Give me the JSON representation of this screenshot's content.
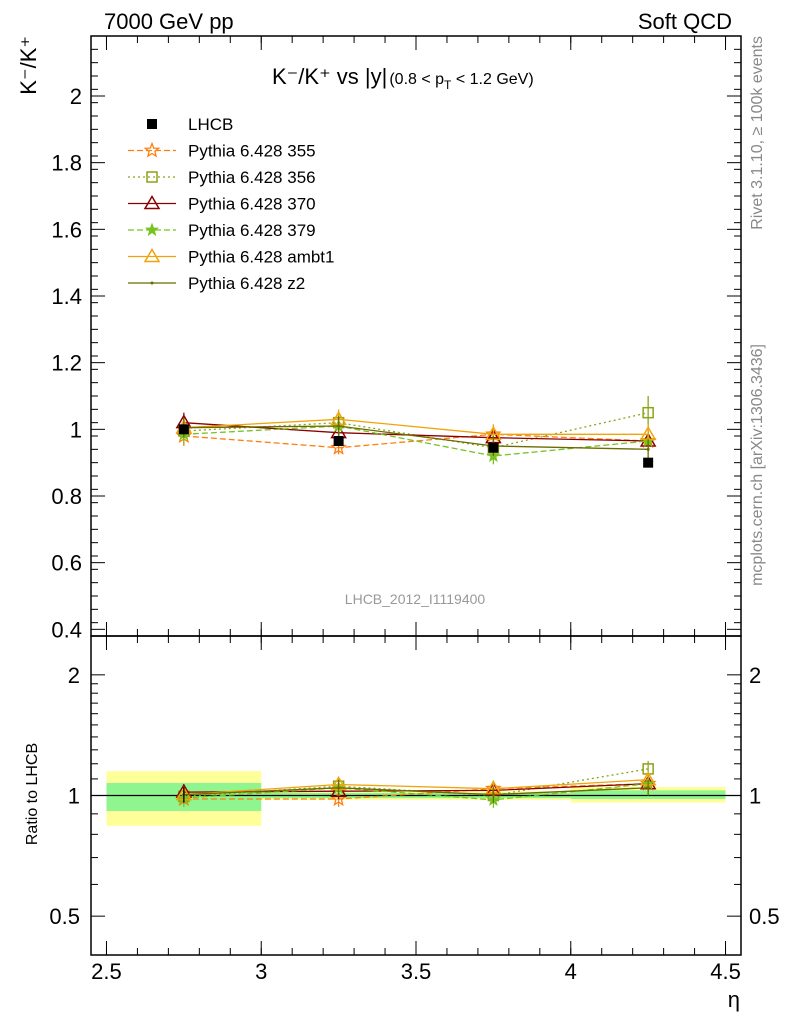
{
  "header": {
    "left": "7000 GeV pp",
    "right": "Soft QCD"
  },
  "side_labels": {
    "top": "Rivet 3.1.10, ≥ 100k events",
    "bottom": "mcplots.cern.ch [arXiv:1306.3436]"
  },
  "colors": {
    "LHCB": "#000000",
    "p355": "#ff7f0e",
    "p356": "#8aa418",
    "p370": "#8b0000",
    "p379": "#77c322",
    "pambt1": "#f0a30a",
    "pz2": "#6b6b00",
    "band_green": "#8ff58f",
    "band_yellow": "#ffff99"
  },
  "chart_data": [
    {
      "type": "scatter",
      "panel": "main",
      "title_main": "K⁻/K⁺ vs |y|",
      "title_sub": "(0.8 < p",
      "title_sub_index": "T",
      "title_sub_end": " < 1.2 GeV)",
      "ylabel": "K⁻/K⁺",
      "ylim": [
        0.38,
        2.18
      ],
      "yticks": [
        "0.4",
        "0.6",
        "0.8",
        "1",
        "1.2",
        "1.4",
        "1.6",
        "1.8",
        "2"
      ],
      "xlim": [
        2.45,
        4.55
      ],
      "watermark": "LHCB_2012_I1119400",
      "legend_position": "top-left",
      "x": [
        2.75,
        3.25,
        3.75,
        4.25
      ],
      "series": [
        {
          "name": "LHCB",
          "key": "LHCB",
          "marker": "square-filled",
          "dash": "none",
          "values": [
            1.0,
            0.965,
            0.945,
            0.9
          ],
          "errors": [
            0.015,
            0.015,
            0.015,
            0.01
          ]
        },
        {
          "name": "Pythia 6.428 355",
          "key": "p355",
          "marker": "star-open",
          "dash": "6,3",
          "values": [
            0.98,
            0.945,
            0.985,
            0.965
          ],
          "errors": [
            0.03,
            0.02,
            0.025,
            0.03
          ]
        },
        {
          "name": "Pythia 6.428 356",
          "key": "p356",
          "marker": "square-open",
          "dash": "2,3",
          "values": [
            0.995,
            1.02,
            0.945,
            1.05
          ],
          "errors": [
            0.03,
            0.03,
            0.03,
            0.05
          ]
        },
        {
          "name": "Pythia 6.428 370",
          "key": "p370",
          "marker": "triangle-open",
          "dash": "none",
          "values": [
            1.02,
            0.99,
            0.975,
            0.965
          ],
          "errors": [
            0.03,
            0.03,
            0.03,
            0.03
          ]
        },
        {
          "name": "Pythia 6.428 379",
          "key": "p379",
          "marker": "star-filled",
          "dash": "6,3",
          "values": [
            0.985,
            1.01,
            0.92,
            0.965
          ],
          "errors": [
            0.03,
            0.03,
            0.025,
            0.03
          ]
        },
        {
          "name": "Pythia 6.428 ambt1",
          "key": "pambt1",
          "marker": "triangle-open",
          "dash": "none",
          "values": [
            1.005,
            1.03,
            0.985,
            0.985
          ],
          "errors": [
            0.03,
            0.03,
            0.03,
            0.03
          ]
        },
        {
          "name": "Pythia 6.428 z2",
          "key": "pz2",
          "marker": "dot",
          "dash": "none",
          "values": [
            1.005,
            1.01,
            0.95,
            0.94
          ],
          "errors": [
            0.03,
            0.03,
            0.03,
            0.03
          ]
        }
      ]
    },
    {
      "type": "scatter",
      "panel": "ratio",
      "ylabel": "Ratio to LHCB",
      "yscale": "log",
      "ylim": [
        0.4,
        2.5
      ],
      "yticks": [
        "0.5",
        "1",
        "2"
      ],
      "xlabel": "η",
      "xlim": [
        2.45,
        4.55
      ],
      "xticks": [
        "2.5",
        "3",
        "3.5",
        "4",
        "4.5"
      ],
      "reference": 1,
      "bands": [
        {
          "x": [
            2.5,
            3.0
          ],
          "stat": [
            0.915,
            1.075
          ],
          "total": [
            0.84,
            1.15
          ]
        },
        {
          "x": [
            3.0,
            3.5
          ],
          "stat": [
            0.985,
            1.015
          ],
          "total": [
            0.975,
            1.025
          ]
        },
        {
          "x": [
            3.5,
            4.0
          ],
          "stat": [
            0.985,
            1.015
          ],
          "total": [
            0.975,
            1.025
          ]
        },
        {
          "x": [
            4.0,
            4.5
          ],
          "stat": [
            0.98,
            1.03
          ],
          "total": [
            0.96,
            1.05
          ]
        }
      ],
      "x": [
        2.75,
        3.25,
        3.75,
        4.25
      ],
      "series": [
        {
          "key": "p355",
          "values": [
            0.98,
            0.98,
            1.04,
            1.07
          ]
        },
        {
          "key": "p356",
          "values": [
            0.995,
            1.055,
            1.0,
            1.165
          ]
        },
        {
          "key": "p370",
          "values": [
            1.02,
            1.025,
            1.03,
            1.07
          ]
        },
        {
          "key": "p379",
          "values": [
            0.985,
            1.045,
            0.975,
            1.07
          ]
        },
        {
          "key": "pambt1",
          "values": [
            1.005,
            1.065,
            1.04,
            1.095
          ]
        },
        {
          "key": "pz2",
          "values": [
            1.005,
            1.045,
            1.005,
            1.045
          ]
        }
      ]
    }
  ]
}
